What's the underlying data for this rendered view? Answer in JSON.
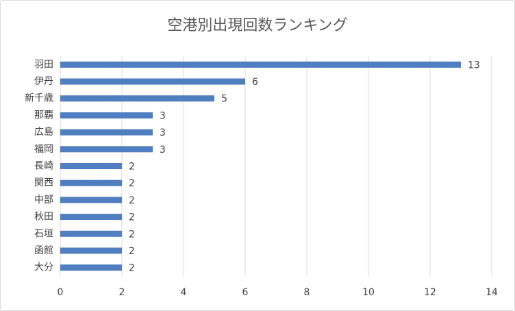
{
  "chart_data": {
    "type": "bar",
    "orientation": "horizontal",
    "title": "空港別出現回数ランキング",
    "categories": [
      "羽田",
      "伊丹",
      "新千歳",
      "那覇",
      "広島",
      "福岡",
      "長崎",
      "関西",
      "中部",
      "秋田",
      "石垣",
      "函館",
      "大分"
    ],
    "values": [
      13,
      6,
      5,
      3,
      3,
      3,
      2,
      2,
      2,
      2,
      2,
      2,
      2
    ],
    "color": "#4f7fc0",
    "xlim": [
      0,
      14
    ],
    "xticks": [
      0,
      2,
      4,
      6,
      8,
      10,
      12,
      14
    ],
    "grid": true
  }
}
